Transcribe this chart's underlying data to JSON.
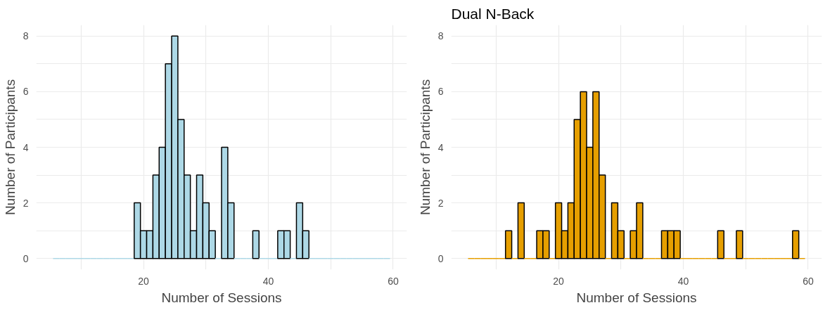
{
  "chart_data": [
    {
      "type": "histogram",
      "xlabel": "Number of Sessions",
      "ylabel": "Number of Participants",
      "color": "#add8e6",
      "bins": [
        5.5,
        6.5,
        7.5,
        8.5,
        9.5,
        10.5,
        11.5,
        12.5,
        13.5,
        14.5,
        15.5,
        16.5,
        17.5,
        18.5,
        19.5,
        20.5,
        21.5,
        22.5,
        23.5,
        24.5,
        25.5,
        26.5,
        27.5,
        28.5,
        29.5,
        30.5,
        31.5,
        32.5,
        33.5,
        34.5,
        35.5,
        36.5,
        37.5,
        38.5,
        39.5,
        40.5,
        41.5,
        42.5,
        43.5,
        44.5,
        45.5,
        46.5,
        47.5,
        48.5,
        49.5,
        50.5,
        51.5,
        52.5,
        53.5,
        54.5,
        55.5,
        56.5,
        57.5,
        58.5,
        59.5
      ],
      "values": [
        0,
        0,
        0,
        0,
        0,
        0,
        0,
        0,
        0,
        0,
        0,
        0,
        0,
        2,
        1,
        1,
        3,
        4,
        7,
        8,
        5,
        3,
        1,
        3,
        2,
        1,
        0,
        4,
        2,
        0,
        0,
        0,
        1,
        0,
        0,
        0,
        1,
        1,
        0,
        2,
        1,
        0,
        0,
        0,
        0,
        0,
        0,
        0,
        0,
        0,
        0,
        0,
        0,
        0
      ],
      "xlim": [
        2.8,
        62.2
      ],
      "ylim": [
        -0.4,
        8.4
      ],
      "xticks": [
        {
          "value": 10,
          "label": null
        },
        20,
        {
          "value": 30,
          "label": null
        },
        40,
        {
          "value": 50,
          "label": null
        },
        60
      ],
      "yticks": [
        0,
        {
          "value": 1,
          "label": null
        },
        2,
        {
          "value": 3,
          "label": null
        },
        4,
        {
          "value": 5,
          "label": null
        },
        6,
        {
          "value": 7,
          "label": null
        },
        8
      ],
      "grid": true
    },
    {
      "type": "histogram",
      "title": "Dual N-Back",
      "xlabel": "Number of Sessions",
      "ylabel": "Number of Participants",
      "color": "#e69f00",
      "bins": [
        5.5,
        6.5,
        7.5,
        8.5,
        9.5,
        10.5,
        11.5,
        12.5,
        13.5,
        14.5,
        15.5,
        16.5,
        17.5,
        18.5,
        19.5,
        20.5,
        21.5,
        22.5,
        23.5,
        24.5,
        25.5,
        26.5,
        27.5,
        28.5,
        29.5,
        30.5,
        31.5,
        32.5,
        33.5,
        34.5,
        35.5,
        36.5,
        37.5,
        38.5,
        39.5,
        40.5,
        41.5,
        42.5,
        43.5,
        44.5,
        45.5,
        46.5,
        47.5,
        48.5,
        49.5,
        50.5,
        51.5,
        52.5,
        53.5,
        54.5,
        55.5,
        56.5,
        57.5,
        58.5,
        59.5
      ],
      "values": [
        0,
        0,
        0,
        0,
        0,
        0,
        1,
        0,
        2,
        0,
        0,
        1,
        1,
        0,
        2,
        1,
        2,
        5,
        6,
        4,
        6,
        3,
        0,
        2,
        1,
        0,
        1,
        2,
        0,
        0,
        0,
        1,
        1,
        1,
        0,
        0,
        0,
        0,
        0,
        0,
        1,
        0,
        0,
        1,
        0,
        0,
        0,
        0,
        0,
        0,
        0,
        0,
        1,
        0
      ],
      "xlim": [
        2.8,
        62.2
      ],
      "ylim": [
        -0.4,
        8.4
      ],
      "xticks": [
        {
          "value": 10,
          "label": null
        },
        20,
        {
          "value": 30,
          "label": null
        },
        40,
        {
          "value": 50,
          "label": null
        },
        60
      ],
      "yticks": [
        0,
        {
          "value": 1,
          "label": null
        },
        2,
        {
          "value": 3,
          "label": null
        },
        4,
        {
          "value": 5,
          "label": null
        },
        6,
        {
          "value": 7,
          "label": null
        },
        8
      ],
      "grid": true
    }
  ]
}
